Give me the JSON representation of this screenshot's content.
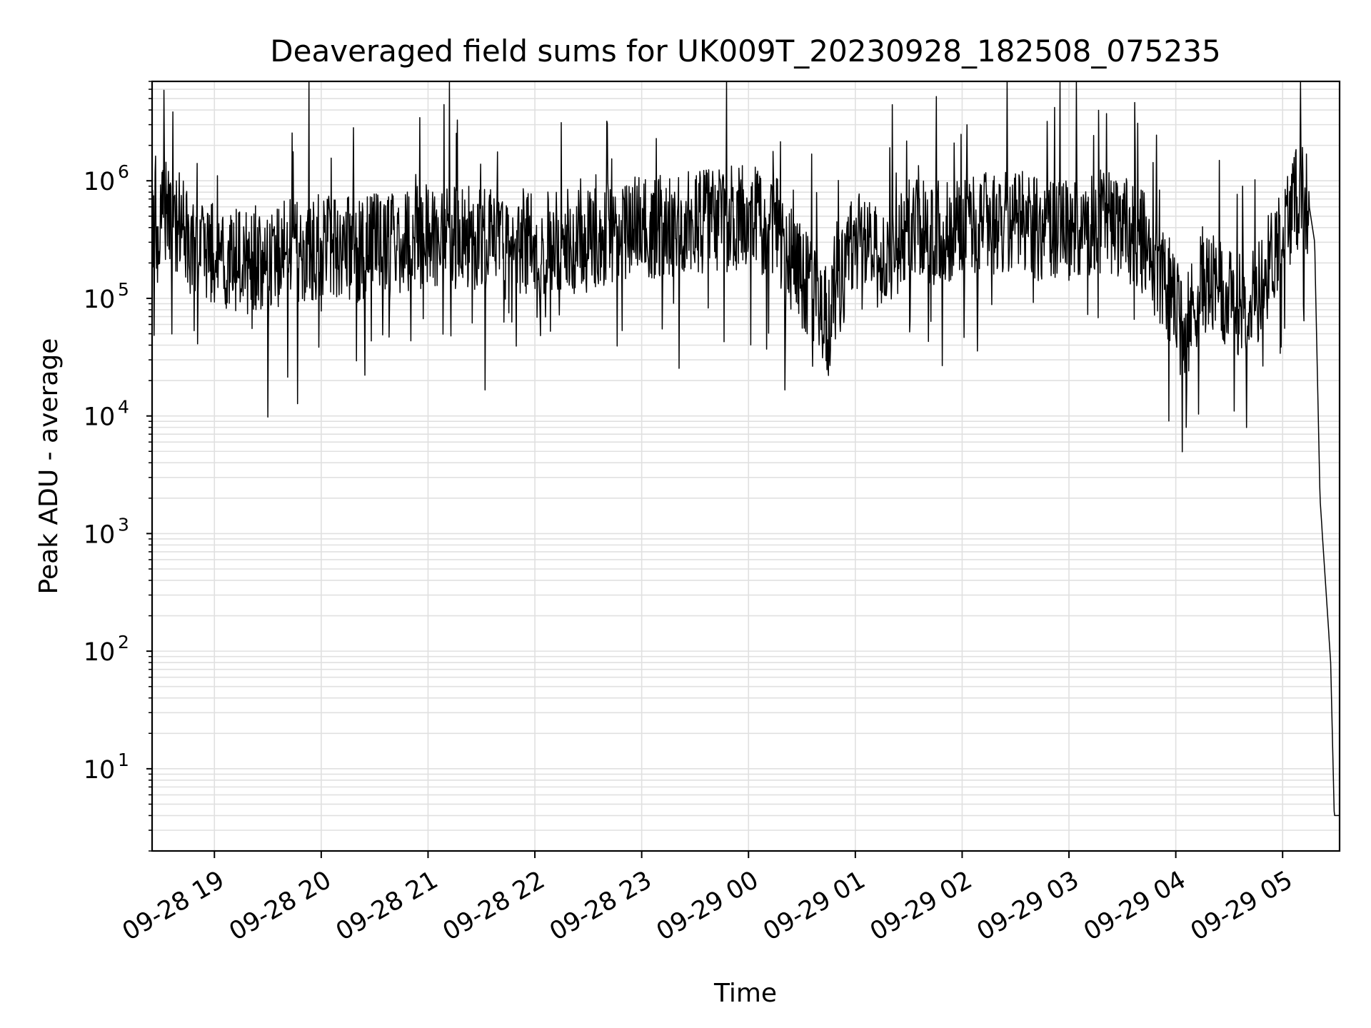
{
  "chart_data": {
    "type": "line",
    "title": "Deaveraged field sums for UK009T_20230928_182508_075235",
    "xlabel": "Time",
    "ylabel": "Peak ADU - average",
    "yscale": "log",
    "grid": true,
    "line_color": "#000000",
    "grid_color": "#e0e0e0",
    "x_start": "09-28 18:25",
    "x_end": "09-29 05:32",
    "xlim": [
      "09-28 18:25",
      "09-29 05:32"
    ],
    "x_ticks": [
      "09-28 19",
      "09-28 20",
      "09-28 21",
      "09-28 22",
      "09-28 23",
      "09-29 00",
      "09-29 01",
      "09-29 02",
      "09-29 03",
      "09-29 04",
      "09-29 05"
    ],
    "y_ticks": [
      {
        "base": "10",
        "exp": "1",
        "value": 10
      },
      {
        "base": "10",
        "exp": "2",
        "value": 100
      },
      {
        "base": "10",
        "exp": "3",
        "value": 1000
      },
      {
        "base": "10",
        "exp": "4",
        "value": 10000
      },
      {
        "base": "10",
        "exp": "5",
        "value": 100000
      },
      {
        "base": "10",
        "exp": "6",
        "value": 1000000
      }
    ],
    "ylim": [
      2,
      7000000
    ],
    "series": [
      {
        "x": [
          "09-28 18:25",
          "09-28 18:35",
          "09-28 18:45",
          "09-28 19:00",
          "09-28 19:20",
          "09-28 19:40",
          "09-28 20:00",
          "09-28 20:20",
          "09-28 20:40",
          "09-28 21:00",
          "09-28 21:20",
          "09-28 21:40",
          "09-28 22:00",
          "09-28 22:20",
          "09-28 22:40",
          "09-28 23:00",
          "09-28 23:20",
          "09-28 23:40",
          "09-29 00:00",
          "09-29 00:15",
          "09-29 00:30",
          "09-29 00:45",
          "09-29 01:00",
          "09-29 01:15",
          "09-29 01:30",
          "09-29 01:45",
          "09-29 02:00",
          "09-29 02:20",
          "09-29 02:40",
          "09-29 03:00",
          "09-29 03:20",
          "09-29 03:40",
          "09-29 03:55",
          "09-29 04:05",
          "09-29 04:15",
          "09-29 04:30",
          "09-29 04:45",
          "09-29 05:00",
          "09-29 05:10",
          "09-29 05:15",
          "09-29 05:18",
          "09-29 05:21",
          "09-29 05:24",
          "09-29 05:27",
          "09-29 05:29",
          "09-29 05:32"
        ],
        "y": [
          450000,
          550000,
          350000,
          220000,
          200000,
          230000,
          280000,
          260000,
          300000,
          350000,
          330000,
          320000,
          300000,
          280000,
          350000,
          400000,
          420000,
          450000,
          500000,
          400000,
          150000,
          60000,
          350000,
          200000,
          400000,
          350000,
          400000,
          450000,
          420000,
          380000,
          450000,
          330000,
          120000,
          50000,
          150000,
          90000,
          100000,
          400000,
          800000,
          600000,
          300000,
          2000,
          400,
          80,
          4,
          4
        ]
      }
    ]
  }
}
